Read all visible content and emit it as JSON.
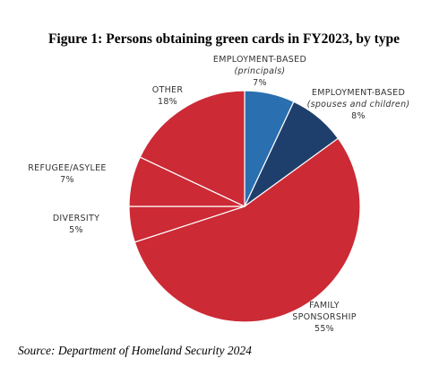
{
  "chart_data": {
    "type": "pie",
    "title": "Figure 1: Persons obtaining green cards in FY2023, by type",
    "categories": [
      "EMPLOYMENT-BASED",
      "EMPLOYMENT-BASED",
      "FAMILY SPONSORSHIP",
      "DIVERSITY",
      "REFUGEE/ASYLEE",
      "OTHER"
    ],
    "category_notes": [
      "(principals)",
      "(spouses and children)",
      null,
      null,
      null,
      null
    ],
    "values": [
      7,
      8,
      55,
      5,
      7,
      18
    ],
    "value_labels": [
      "7%",
      "8%",
      "55%",
      "5%",
      "7%",
      "18%"
    ],
    "colors": [
      "#2a6fb0",
      "#1e3f6b",
      "#cc2a35",
      "#cc2a35",
      "#cc2a35",
      "#cc2a35"
    ],
    "source": "Source: Department of Homeland Security 2024"
  }
}
